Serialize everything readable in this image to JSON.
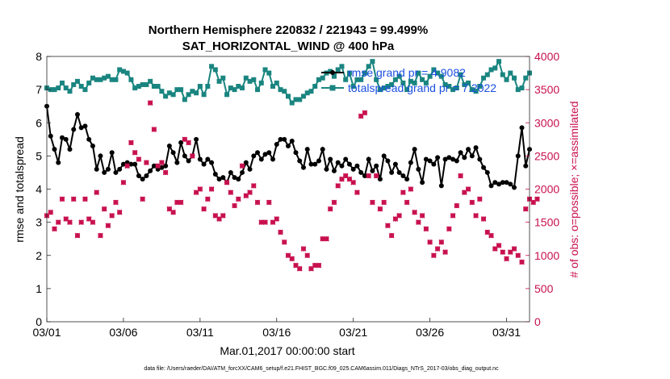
{
  "chart_data": {
    "type": "line",
    "title_line1": "Northern Hemisphere 220832 / 221943 = 99.499%",
    "title_line2": "SAT_HORIZONTAL_WIND @ 400 hPa",
    "xlabel": "Mar.01,2017 00:00:00 start",
    "ylabel": "rmse and totalspread",
    "ylabel_right": "# of obs: o=possible; ×=assimilated",
    "xlim": [
      0,
      31.5
    ],
    "ylim": [
      0,
      8
    ],
    "ylim_right": [
      0,
      4000
    ],
    "x_tick_labels": [
      "03/01",
      "03/06",
      "03/11",
      "03/16",
      "03/21",
      "03/26",
      "03/31"
    ],
    "x_ticks": [
      0,
      5,
      10,
      15,
      20,
      25,
      30
    ],
    "y_ticks": [
      0,
      1,
      2,
      3,
      4,
      5,
      6,
      7,
      8
    ],
    "y_ticks_right": [
      0,
      500,
      1000,
      1500,
      2000,
      2500,
      3000,
      3500,
      4000
    ],
    "grid": false,
    "legend": {
      "placement": "top-right",
      "entries": [
        "rmse grand pr = 4.9082",
        "totalspread grand pr = 7.2022"
      ]
    },
    "footnote": "data file: /Users/raeder/DAI/ATM_forcXX/CAM6_setup/f.e21.FHIST_BGC.f09_025.CAM6assim.011/Diags_NTrS_2017-03/obs_diag_output.nc",
    "colors": {
      "rmse": "#000000",
      "totalspread": "#1a8580",
      "obs": "#c8104e",
      "legend_text": "#1a4fe0"
    },
    "x_step_days": 0.25,
    "series": [
      {
        "name": "rmse grand pr = 4.9082",
        "axis": "left",
        "marker": "star",
        "values": [
          6.5,
          5.6,
          5.2,
          4.8,
          5.55,
          5.5,
          5.2,
          5.8,
          6.25,
          5.85,
          5.9,
          5.5,
          5.3,
          4.6,
          5.0,
          4.5,
          4.6,
          5.1,
          4.5,
          4.6,
          4.75,
          4.8,
          4.75,
          4.75,
          4.4,
          4.3,
          4.4,
          4.55,
          4.7,
          4.6,
          4.65,
          4.7,
          5.3,
          5.1,
          4.8,
          5.4,
          5.0,
          4.85,
          5.0,
          5.5,
          4.9,
          4.75,
          4.9,
          4.8,
          4.45,
          4.3,
          4.35,
          4.2,
          4.5,
          4.35,
          4.3,
          4.5,
          4.8,
          4.6,
          5.0,
          5.1,
          4.9,
          5.05,
          5.1,
          4.9,
          5.35,
          5.5,
          5.5,
          5.3,
          5.45,
          5.1,
          4.85,
          4.65,
          5.2,
          4.75,
          4.75,
          4.85,
          5.2,
          4.6,
          4.9,
          4.55,
          4.8,
          4.7,
          4.9,
          4.75,
          4.6,
          4.7,
          4.5,
          4.4,
          4.9,
          4.55,
          4.7,
          4.3,
          5.0,
          4.85,
          4.5,
          4.75,
          4.5,
          4.4,
          4.3,
          4.8,
          5.2,
          4.6,
          4.2,
          4.9,
          4.85,
          4.75,
          4.95,
          4.1,
          4.9,
          4.95,
          4.9,
          4.85,
          5.1,
          4.95,
          5.2,
          5.0,
          5.25,
          4.9,
          4.65,
          4.5,
          4.1,
          4.2,
          4.15,
          4.2,
          4.2,
          4.15,
          4.05,
          5.0,
          5.85,
          4.7,
          5.2
        ]
      },
      {
        "name": "totalspread grand pr = 7.2022",
        "axis": "left",
        "marker": "square",
        "values": [
          7.05,
          7.0,
          7.0,
          7.05,
          7.2,
          7.05,
          6.95,
          7.15,
          7.25,
          7.1,
          7.0,
          7.2,
          7.35,
          7.3,
          7.3,
          7.35,
          7.4,
          7.3,
          7.3,
          7.6,
          7.55,
          7.5,
          7.3,
          7.05,
          7.1,
          7.15,
          7.15,
          7.25,
          7.1,
          7.1,
          6.95,
          6.8,
          6.9,
          6.85,
          7.0,
          7.0,
          6.7,
          6.85,
          6.95,
          6.9,
          7.1,
          6.85,
          7.1,
          7.7,
          7.6,
          7.25,
          7.35,
          6.85,
          7.05,
          7.0,
          7.1,
          7.05,
          7.35,
          7.25,
          7.3,
          7.0,
          7.2,
          7.6,
          7.5,
          7.1,
          7.2,
          7.0,
          6.95,
          6.8,
          6.6,
          6.7,
          6.7,
          6.8,
          6.9,
          6.95,
          7.1,
          7.3,
          7.35,
          7.5,
          7.55,
          7.4,
          7.6,
          7.7,
          7.3,
          7.5,
          7.1,
          7.3,
          7.3,
          7.5,
          7.7,
          7.85,
          7.3,
          7.0,
          7.05,
          7.1,
          7.15,
          7.3,
          7.4,
          7.2,
          7.0,
          7.25,
          7.2,
          7.5,
          7.3,
          7.2,
          7.4,
          7.6,
          7.5,
          7.4,
          7.15,
          7.1,
          7.0,
          7.05,
          7.45,
          7.15,
          7.2,
          7.0,
          6.95,
          7.1,
          7.35,
          7.45,
          7.6,
          7.65,
          7.85,
          7.45,
          7.3,
          7.5,
          7.35,
          7.0,
          7.05,
          7.35,
          7.5
        ]
      },
      {
        "name": "obs possible",
        "axis": "right",
        "marker": "circle",
        "values": [
          1600,
          1650,
          1400,
          1500,
          1850,
          1550,
          1500,
          1850,
          1300,
          1500,
          1850,
          1550,
          1500,
          1950,
          1300,
          1700,
          1450,
          1600,
          1800,
          1650,
          2100,
          2350,
          2700,
          2550,
          2450,
          1850,
          2400,
          3300,
          2900,
          2350,
          2400,
          2250,
          1700,
          1650,
          1800,
          1800,
          2750,
          2700,
          2500,
          1950,
          2000,
          1700,
          1850,
          2000,
          1600,
          1550,
          1600,
          2100,
          1950,
          1750,
          1850,
          2350,
          1900,
          1950,
          2050,
          1800,
          1500,
          1500,
          1800,
          1500,
          1550,
          1350,
          1200,
          1000,
          950,
          850,
          800,
          1100,
          1000,
          800,
          850,
          850,
          1250,
          1250,
          1700,
          1800,
          2050,
          2150,
          2200,
          2150,
          2100,
          1950,
          3100,
          3150,
          2200,
          1800,
          2200,
          1700,
          1800,
          1450,
          1300,
          1550,
          1600,
          1950,
          1800,
          2000,
          1650,
          1500,
          1600,
          1400,
          1200,
          1000,
          1100,
          1200,
          1050,
          1400,
          1600,
          1750,
          2200,
          1950,
          2000,
          1800,
          1600,
          1850,
          1550,
          1350,
          1300,
          1100,
          1150,
          1050,
          950,
          1050,
          1100,
          1000,
          900,
          1700,
          1850,
          1800,
          1850
        ]
      },
      {
        "name": "obs assimilated",
        "axis": "right",
        "marker": "x",
        "values": [
          1600,
          1650,
          1400,
          1500,
          1850,
          1550,
          1500,
          1850,
          1300,
          1500,
          1850,
          1550,
          1500,
          1950,
          1300,
          1700,
          1450,
          1600,
          1800,
          1650,
          2100,
          2350,
          2700,
          2550,
          2450,
          1850,
          2400,
          3300,
          2900,
          2350,
          2400,
          2250,
          1700,
          1650,
          1800,
          1800,
          2750,
          2700,
          2500,
          1950,
          2000,
          1700,
          1850,
          2000,
          1600,
          1550,
          1600,
          2100,
          1950,
          1750,
          1850,
          2350,
          1900,
          1950,
          2050,
          1800,
          1500,
          1500,
          1800,
          1500,
          1550,
          1350,
          1200,
          1000,
          950,
          850,
          800,
          1100,
          1000,
          800,
          850,
          850,
          1250,
          1250,
          1700,
          1800,
          2050,
          2150,
          2200,
          2150,
          2100,
          1950,
          3100,
          3150,
          2200,
          1800,
          2200,
          1700,
          1800,
          1450,
          1300,
          1550,
          1600,
          1950,
          1800,
          2000,
          1650,
          1500,
          1600,
          1400,
          1200,
          1000,
          1100,
          1200,
          1050,
          1400,
          1600,
          1750,
          2200,
          1950,
          2000,
          1800,
          1600,
          1850,
          1550,
          1350,
          1300,
          1100,
          1150,
          1050,
          950,
          1050,
          1100,
          1000,
          900,
          1700,
          1850,
          1800,
          1850
        ]
      }
    ]
  }
}
